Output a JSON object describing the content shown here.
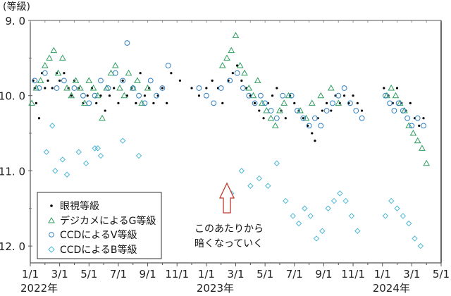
{
  "chart_data": {
    "type": "scatter",
    "title": "",
    "ylabel": "(等級)",
    "xlabel": "",
    "y_inverted": true,
    "ylim": [
      9.0,
      12.2
    ],
    "y_ticks": [
      "9.0",
      "10.0",
      "11.0",
      "12.0"
    ],
    "x_tick_labels": [
      "1/1",
      "3/1",
      "5/1",
      "7/1",
      "9/1",
      "11/1",
      "1/1",
      "3/1",
      "5/1",
      "7/1",
      "9/1",
      "11/1",
      "1/1",
      "3/1",
      "5/1"
    ],
    "x_year_labels": [
      {
        "label": "2022年",
        "month_index": 0
      },
      {
        "label": "2023年",
        "month_index": 12
      },
      {
        "label": "2024年",
        "month_index": 24
      }
    ],
    "x_range_months": [
      0,
      28
    ],
    "grid": false,
    "legend_position": "lower-left",
    "legend": [
      {
        "label": "眼視等級",
        "marker": "dot",
        "color": "#000000"
      },
      {
        "label": "デジカメによるG等級",
        "marker": "triangle",
        "color": "#2e9e5e"
      },
      {
        "label": "CCDによるV等級",
        "marker": "circle",
        "color": "#2f7fc1"
      },
      {
        "label": "CCDによるB等級",
        "marker": "diamond",
        "color": "#4fb8d6"
      }
    ],
    "annotation": {
      "text_lines": [
        "このあたりから",
        "暗くなっていく"
      ],
      "arrow_color": "#c0392b",
      "month": 13.7
    },
    "series": [
      {
        "name": "眼視等級",
        "points": [
          [
            0.2,
            9.8
          ],
          [
            0.3,
            9.9
          ],
          [
            0.4,
            10.1
          ],
          [
            0.6,
            10.3
          ],
          [
            0.8,
            9.7
          ],
          [
            1,
            9.9
          ],
          [
            1.2,
            9.8
          ],
          [
            1.5,
            9.9
          ],
          [
            1.8,
            9.7
          ],
          [
            2,
            9.8
          ],
          [
            2.3,
            9.7
          ],
          [
            2.6,
            9.9
          ],
          [
            2.8,
            10.0
          ],
          [
            3,
            9.8
          ],
          [
            3.3,
            9.9
          ],
          [
            3.6,
            10.1
          ],
          [
            3.9,
            10.0
          ],
          [
            4.2,
            9.9
          ],
          [
            4.5,
            10.1
          ],
          [
            4.8,
            10.0
          ],
          [
            5.1,
            10.2
          ],
          [
            5.4,
            10.0
          ],
          [
            5.7,
            9.9
          ],
          [
            6,
            10.1
          ],
          [
            6.3,
            9.8
          ],
          [
            6.6,
            10.0
          ],
          [
            6.9,
            9.9
          ],
          [
            7.2,
            10.1
          ],
          [
            7.5,
            9.7
          ],
          [
            7.8,
            10.0
          ],
          [
            8.1,
            9.9
          ],
          [
            8.4,
            10.1
          ],
          [
            8.7,
            10.0
          ],
          [
            9,
            9.9
          ],
          [
            9.3,
            10.1
          ],
          [
            9.6,
            9.7
          ],
          [
            10.2,
            9.8
          ],
          [
            11,
            9.9
          ],
          [
            11.5,
            10.0
          ],
          [
            12,
            9.9
          ],
          [
            12.4,
            9.8
          ],
          [
            12.8,
            9.9
          ],
          [
            13.1,
            10.1
          ],
          [
            13.5,
            9.8
          ],
          [
            13.8,
            9.7
          ],
          [
            14.1,
            9.6
          ],
          [
            14.4,
            9.8
          ],
          [
            14.7,
            9.9
          ],
          [
            15,
            10.0
          ],
          [
            15.3,
            10.1
          ],
          [
            15.6,
            10.2
          ],
          [
            15.9,
            10.3
          ],
          [
            16.2,
            10.1
          ],
          [
            16.5,
            10.0
          ],
          [
            16.8,
            9.9
          ],
          [
            17.1,
            10.2
          ],
          [
            17.4,
            10.3
          ],
          [
            17.7,
            10.0
          ],
          [
            18,
            10.1
          ],
          [
            18.3,
            10.2
          ],
          [
            18.6,
            10.3
          ],
          [
            18.9,
            10.4
          ],
          [
            19.2,
            10.5
          ],
          [
            19.4,
            10.6
          ],
          [
            19.6,
            10.3
          ],
          [
            19.9,
            10.2
          ],
          [
            20.2,
            10.1
          ],
          [
            20.5,
            10.2
          ],
          [
            20.8,
            10.0
          ],
          [
            21.1,
            10.1
          ],
          [
            21.4,
            10.0
          ],
          [
            21.7,
            10.1
          ],
          [
            22,
            10.0
          ],
          [
            22.3,
            10.1
          ],
          [
            22.6,
            10.2
          ],
          [
            24.1,
            9.9
          ],
          [
            24.4,
            10.0
          ],
          [
            24.7,
            10.1
          ],
          [
            25,
            9.9
          ],
          [
            25.3,
            10.1
          ],
          [
            25.6,
            10.2
          ],
          [
            25.9,
            10.1
          ],
          [
            26.2,
            10.3
          ],
          [
            26.5,
            10.4
          ],
          [
            26.8,
            10.3
          ]
        ]
      },
      {
        "name": "デジカメによるG等級",
        "points": [
          [
            0.1,
            10.1
          ],
          [
            0.4,
            9.9
          ],
          [
            0.7,
            9.8
          ],
          [
            1,
            9.6
          ],
          [
            1.3,
            9.5
          ],
          [
            1.6,
            9.4
          ],
          [
            1.9,
            9.7
          ],
          [
            2.2,
            9.5
          ],
          [
            2.5,
            9.9
          ],
          [
            2.8,
            10.0
          ],
          [
            3.1,
            9.8
          ],
          [
            3.4,
            9.9
          ],
          [
            3.7,
            10.1
          ],
          [
            4,
            9.8
          ],
          [
            4.3,
            9.9
          ],
          [
            4.6,
            10.0
          ],
          [
            4.9,
            10.3
          ],
          [
            5.2,
            9.9
          ],
          [
            5.5,
            9.7
          ],
          [
            5.8,
            9.6
          ],
          [
            6.1,
            9.9
          ],
          [
            6.4,
            10.0
          ],
          [
            6.7,
            9.7
          ],
          [
            7,
            9.9
          ],
          [
            7.3,
            9.8
          ],
          [
            7.6,
            10.1
          ],
          [
            8,
            9.9
          ],
          [
            13.1,
            9.6
          ],
          [
            13.4,
            9.5
          ],
          [
            13.7,
            9.4
          ],
          [
            14,
            9.2
          ],
          [
            14.3,
            9.6
          ],
          [
            14.6,
            9.7
          ],
          [
            14.9,
            9.9
          ],
          [
            15.2,
            10.0
          ],
          [
            15.5,
            9.8
          ],
          [
            15.8,
            10.1
          ],
          [
            16.1,
            10.2
          ],
          [
            16.4,
            10.3
          ],
          [
            16.7,
            10.4
          ],
          [
            17,
            10.2
          ],
          [
            17.3,
            10.1
          ],
          [
            17.6,
            10.0
          ],
          [
            18.4,
            10.2
          ],
          [
            18.8,
            10.3
          ],
          [
            19.2,
            10.1
          ],
          [
            19.8,
            10.0
          ],
          [
            20.5,
            9.9
          ],
          [
            21,
            10.1
          ],
          [
            24.3,
            10.0
          ],
          [
            24.6,
            9.9
          ],
          [
            24.9,
            10.0
          ],
          [
            25.2,
            10.1
          ],
          [
            25.5,
            10.2
          ],
          [
            25.8,
            10.4
          ],
          [
            26.1,
            10.5
          ],
          [
            26.4,
            10.6
          ],
          [
            26.7,
            10.7
          ],
          [
            27,
            10.9
          ]
        ]
      },
      {
        "name": "CCDによるV等級",
        "points": [
          [
            0.3,
            9.8
          ],
          [
            0.6,
            9.9
          ],
          [
            1,
            9.7
          ],
          [
            1.8,
            9.9
          ],
          [
            2.3,
            9.8
          ],
          [
            3,
            9.9
          ],
          [
            3.6,
            10.0
          ],
          [
            4,
            10.1
          ],
          [
            4.4,
            10.0
          ],
          [
            4.8,
            9.8
          ],
          [
            5.3,
            9.9
          ],
          [
            5.8,
            9.7
          ],
          [
            6.3,
            9.8
          ],
          [
            6.6,
            9.3
          ],
          [
            7,
            9.9
          ],
          [
            7.4,
            10.0
          ],
          [
            7.8,
            10.1
          ],
          [
            8.2,
            9.8
          ],
          [
            8.6,
            10.0
          ],
          [
            9,
            9.9
          ],
          [
            9.4,
            9.6
          ],
          [
            11.5,
            9.9
          ],
          [
            12,
            10.0
          ],
          [
            12.5,
            10.1
          ],
          [
            13,
            9.9
          ],
          [
            13.6,
            9.8
          ],
          [
            14.1,
            9.7
          ],
          [
            14.5,
            9.9
          ],
          [
            14.9,
            10.0
          ],
          [
            15.3,
            10.1
          ],
          [
            15.7,
            10.0
          ],
          [
            16,
            10.1
          ],
          [
            16.4,
            10.2
          ],
          [
            16.8,
            10.3
          ],
          [
            17.2,
            10.0
          ],
          [
            17.8,
            10.0
          ],
          [
            18.2,
            10.2
          ],
          [
            18.6,
            10.3
          ],
          [
            19,
            10.4
          ],
          [
            19.4,
            10.3
          ],
          [
            19.8,
            10.4
          ],
          [
            20.2,
            10.2
          ],
          [
            20.6,
            10.1
          ],
          [
            21,
            10.0
          ],
          [
            21.4,
            9.9
          ],
          [
            21.8,
            10.1
          ],
          [
            22.2,
            10.2
          ],
          [
            22.6,
            10.3
          ],
          [
            24.2,
            10.0
          ],
          [
            24.5,
            10.1
          ],
          [
            24.8,
            10.2
          ],
          [
            25.1,
            10.1
          ],
          [
            25.4,
            10.2
          ],
          [
            25.7,
            10.3
          ],
          [
            26,
            10.4
          ],
          [
            26.4,
            10.3
          ],
          [
            26.8,
            10.4
          ]
        ]
      },
      {
        "name": "CCDによるB等級",
        "points": [
          [
            1.1,
            10.75
          ],
          [
            1.5,
            10.4
          ],
          [
            1.7,
            11.0
          ],
          [
            2.2,
            10.85
          ],
          [
            2.5,
            11.05
          ],
          [
            3.3,
            10.75
          ],
          [
            3.8,
            10.9
          ],
          [
            4.4,
            10.7
          ],
          [
            4.6,
            10.7
          ],
          [
            4.8,
            10.8
          ],
          [
            6.3,
            10.6
          ],
          [
            7.4,
            10.8
          ],
          [
            13.7,
            11.3
          ],
          [
            14.4,
            11.0
          ],
          [
            15,
            11.2
          ],
          [
            15.6,
            11.1
          ],
          [
            16.2,
            11.2
          ],
          [
            16.8,
            10.9
          ],
          [
            17.4,
            11.4
          ],
          [
            17.9,
            11.6
          ],
          [
            18.3,
            11.7
          ],
          [
            18.7,
            11.5
          ],
          [
            19.1,
            11.6
          ],
          [
            19.5,
            11.9
          ],
          [
            19.9,
            11.8
          ],
          [
            20.3,
            11.5
          ],
          [
            20.7,
            11.4
          ],
          [
            21.1,
            11.3
          ],
          [
            21.5,
            11.4
          ],
          [
            21.9,
            11.6
          ],
          [
            22.3,
            11.8
          ],
          [
            24.2,
            11.6
          ],
          [
            24.6,
            11.4
          ],
          [
            25,
            11.5
          ],
          [
            25.4,
            11.6
          ],
          [
            25.8,
            11.7
          ],
          [
            26.2,
            11.9
          ],
          [
            26.6,
            12.0
          ]
        ]
      }
    ]
  }
}
